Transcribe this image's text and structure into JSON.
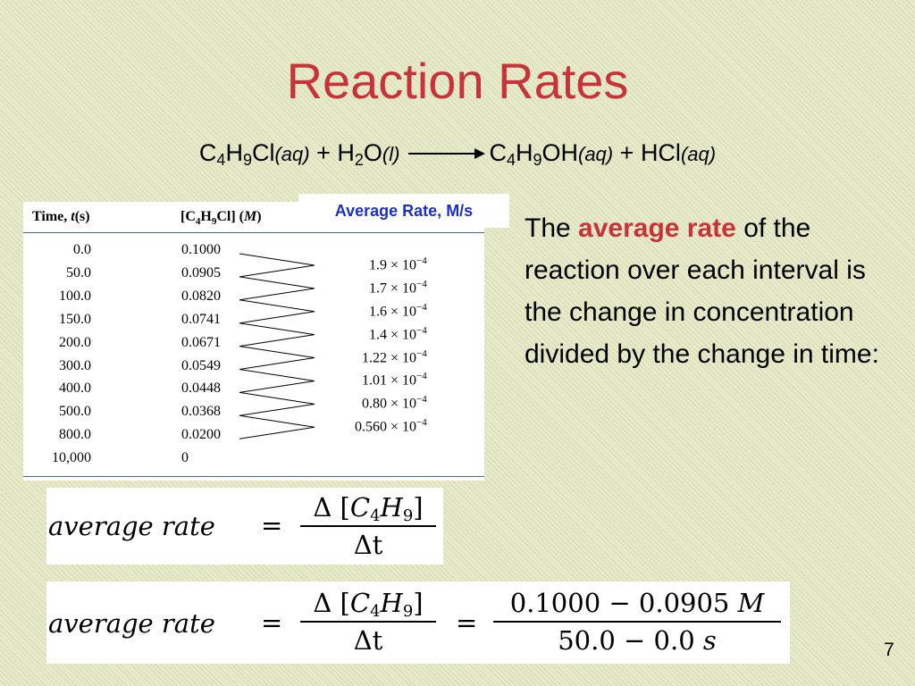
{
  "slide": {
    "title": "Reaction Rates",
    "page_number": "7"
  },
  "reaction": {
    "reactant_1": {
      "formula": [
        "C",
        "4",
        "H",
        "9",
        "Cl"
      ],
      "state": "(aq)"
    },
    "plus_1": "+",
    "reactant_2": {
      "formula": [
        "H",
        "2",
        "O"
      ],
      "state": "(l)"
    },
    "product_1": {
      "formula": [
        "C",
        "4",
        "H",
        "9",
        "OH"
      ],
      "state": "(aq)"
    },
    "plus_2": "+",
    "product_2": {
      "formula": [
        "HCl"
      ],
      "state": "(aq)"
    }
  },
  "table": {
    "header_time": "Time, t(s)",
    "header_conc": "[C4H9Cl] (M)",
    "rows": [
      {
        "time": "0.0",
        "conc": "0.1000"
      },
      {
        "time": "50.0",
        "conc": "0.0905"
      },
      {
        "time": "100.0",
        "conc": "0.0820"
      },
      {
        "time": "150.0",
        "conc": "0.0741"
      },
      {
        "time": "200.0",
        "conc": "0.0671"
      },
      {
        "time": "300.0",
        "conc": "0.0549"
      },
      {
        "time": "400.0",
        "conc": "0.0448"
      },
      {
        "time": "500.0",
        "conc": "0.0368"
      },
      {
        "time": "800.0",
        "conc": "0.0200"
      },
      {
        "time": "10,000",
        "conc": "0"
      }
    ],
    "rates": [
      {
        "mantissa": "1.9",
        "times": "×",
        "base": "10",
        "exponent": "−4"
      },
      {
        "mantissa": "1.7",
        "times": "×",
        "base": "10",
        "exponent": "−4"
      },
      {
        "mantissa": "1.6",
        "times": "×",
        "base": "10",
        "exponent": "−4"
      },
      {
        "mantissa": "1.4",
        "times": "×",
        "base": "10",
        "exponent": "−4"
      },
      {
        "mantissa": "1.22",
        "times": "×",
        "base": "10",
        "exponent": "−4"
      },
      {
        "mantissa": "1.01",
        "times": "×",
        "base": "10",
        "exponent": "−4"
      },
      {
        "mantissa": "0.80",
        "times": "×",
        "base": "10",
        "exponent": "−4"
      },
      {
        "mantissa": "0.560",
        "times": "×",
        "base": "10",
        "exponent": "−4"
      }
    ]
  },
  "rate_label": "Average Rate, M/s",
  "description": {
    "prefix": "The",
    "highlight": "average rate",
    "suffix": "of the reaction over each interval is the change in concentration divided by the change in time:"
  },
  "formula_1": {
    "lhs": "average rate",
    "equals": "=",
    "numerator": {
      "delta": "Δ",
      "open": "[",
      "c": "C",
      "c_sub": "4",
      "h": "H",
      "h_sub": "9",
      "close": "]"
    },
    "denominator": "Δt"
  },
  "formula_2": {
    "lhs": "average rate",
    "equals": "=",
    "numerator": {
      "delta": "Δ",
      "open": "[",
      "c": "C",
      "c_sub": "4",
      "h": "H",
      "h_sub": "9",
      "close": "]"
    },
    "denominator": "Δt",
    "equals_2": "=",
    "numerator_2": {
      "value": "0.1000 − 0.0905",
      "unit": "M"
    },
    "denominator_2": {
      "value": "50.0 − 0.0",
      "unit": "s"
    }
  },
  "colors": {
    "title": "#c8333a",
    "highlight": "#c8333a",
    "rate_label": "#1d2fc9",
    "table_rule": "#3e6c94",
    "background": "#e7ebc9"
  }
}
